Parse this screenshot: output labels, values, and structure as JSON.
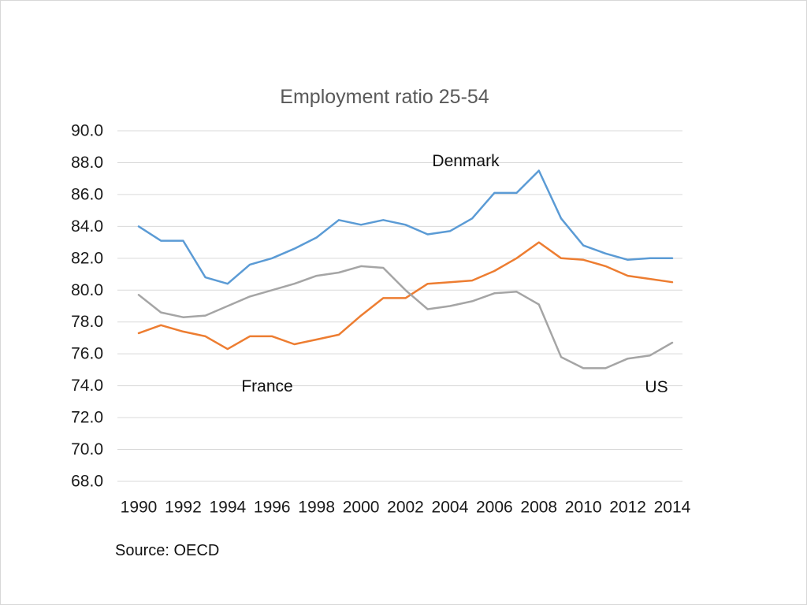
{
  "title": "Employment ratio 25-54",
  "source_text": "Source: OECD",
  "chart_data": {
    "type": "line",
    "title": "Employment ratio 25-54",
    "title_color": "#595959",
    "xlabel": "",
    "ylabel": "",
    "ylim": [
      68.0,
      90.0
    ],
    "y_step": 2.0,
    "grid": true,
    "gridline_color": "#d9d9d9",
    "legend_position": "none",
    "x": [
      1990,
      1991,
      1992,
      1993,
      1994,
      1995,
      1996,
      1997,
      1998,
      1999,
      2000,
      2001,
      2002,
      2003,
      2004,
      2005,
      2006,
      2007,
      2008,
      2009,
      2010,
      2011,
      2012,
      2013,
      2014
    ],
    "x_tick_labels": [
      "1990",
      "1992",
      "1994",
      "1996",
      "1998",
      "2000",
      "2002",
      "2004",
      "2006",
      "2008",
      "2010",
      "2012",
      "2014"
    ],
    "y_tick_labels": [
      "90.0",
      "88.0",
      "86.0",
      "84.0",
      "82.0",
      "80.0",
      "78.0",
      "76.0",
      "74.0",
      "72.0",
      "70.0",
      "68.0"
    ],
    "series": [
      {
        "name": "Denmark",
        "color": "#5b9bd5",
        "values": [
          84.0,
          83.1,
          83.1,
          80.8,
          80.4,
          81.6,
          82.0,
          82.6,
          83.3,
          84.4,
          84.1,
          84.4,
          84.1,
          83.5,
          83.7,
          84.5,
          86.1,
          86.1,
          87.5,
          84.5,
          82.8,
          82.3,
          81.9,
          82.0,
          82.0
        ]
      },
      {
        "name": "France",
        "color": "#ed7d31",
        "values": [
          77.3,
          77.8,
          77.4,
          77.1,
          76.3,
          77.1,
          77.1,
          76.6,
          76.9,
          77.2,
          78.4,
          79.5,
          79.5,
          80.4,
          80.5,
          80.6,
          81.2,
          82.0,
          83.0,
          82.0,
          81.9,
          81.5,
          80.9,
          80.7,
          80.5
        ]
      },
      {
        "name": "US",
        "color": "#a5a5a5",
        "values": [
          79.7,
          78.6,
          78.3,
          78.4,
          79.0,
          79.6,
          80.0,
          80.4,
          80.9,
          81.1,
          81.5,
          81.4,
          80.0,
          78.8,
          79.0,
          79.3,
          79.8,
          79.9,
          79.1,
          75.8,
          75.1,
          75.1,
          75.7,
          75.9,
          76.7
        ]
      }
    ]
  }
}
